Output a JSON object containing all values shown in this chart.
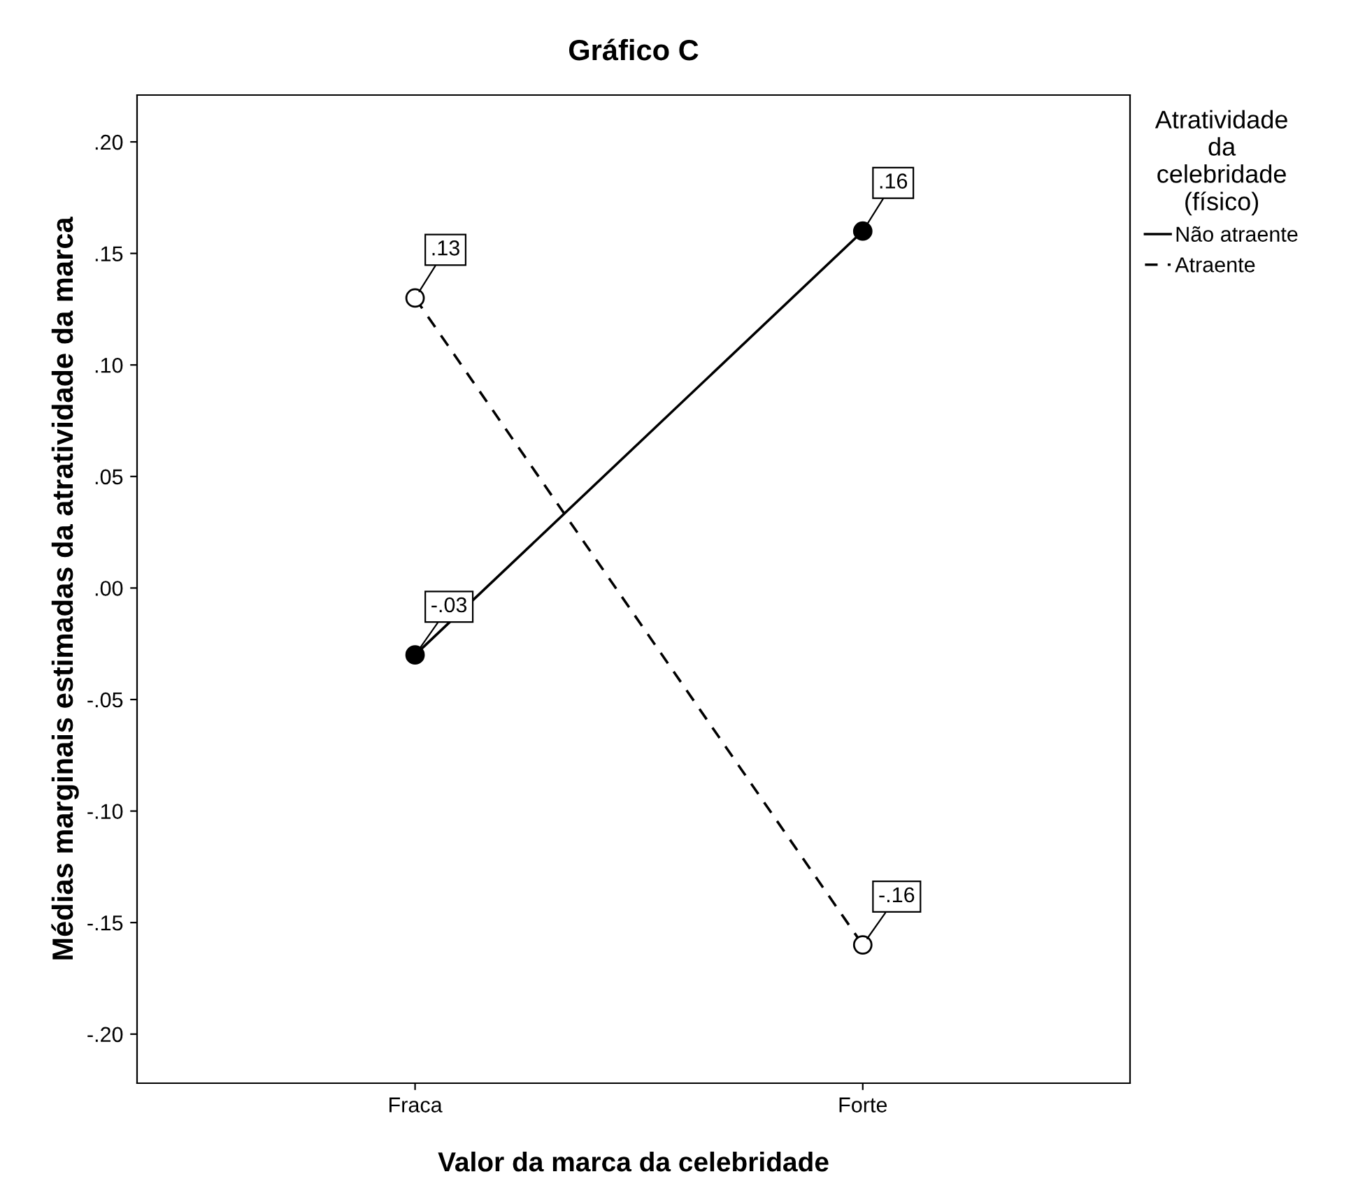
{
  "chart_data": {
    "type": "line",
    "title": "Gráfico C",
    "xlabel": "Valor da marca da celebridade",
    "ylabel": "Médias marginais estimadas da atratividade da marca",
    "legend_title": "Atratividade da celebridade (físico)",
    "categories": [
      "Fraca",
      "Forte"
    ],
    "series": [
      {
        "name": "Não atraente",
        "color": "#000000",
        "values": [
          -0.03,
          0.16
        ],
        "value_labels": [
          "-.03",
          ".16"
        ],
        "line_style": "solid",
        "marker": "circle"
      },
      {
        "name": "Atraente",
        "color": "#000000",
        "values": [
          0.13,
          -0.16
        ],
        "value_labels": [
          ".13",
          "-.16"
        ],
        "line_style": "dashed",
        "marker": "circle"
      }
    ],
    "ylim": [
      -0.222,
      0.221
    ],
    "yticks": [
      {
        "value": -0.2,
        "label": "-.20"
      },
      {
        "value": -0.15,
        "label": "-.15"
      },
      {
        "value": -0.1,
        "label": "-.10"
      },
      {
        "value": -0.05,
        "label": "-.05"
      },
      {
        "value": 0,
        "label": ".00"
      },
      {
        "value": 0.05,
        "label": ".05"
      },
      {
        "value": 0.1,
        "label": ".10"
      },
      {
        "value": 0.15,
        "label": ".15"
      },
      {
        "value": 0.2,
        "label": ".20"
      }
    ],
    "grid": false,
    "legend": "top right"
  }
}
